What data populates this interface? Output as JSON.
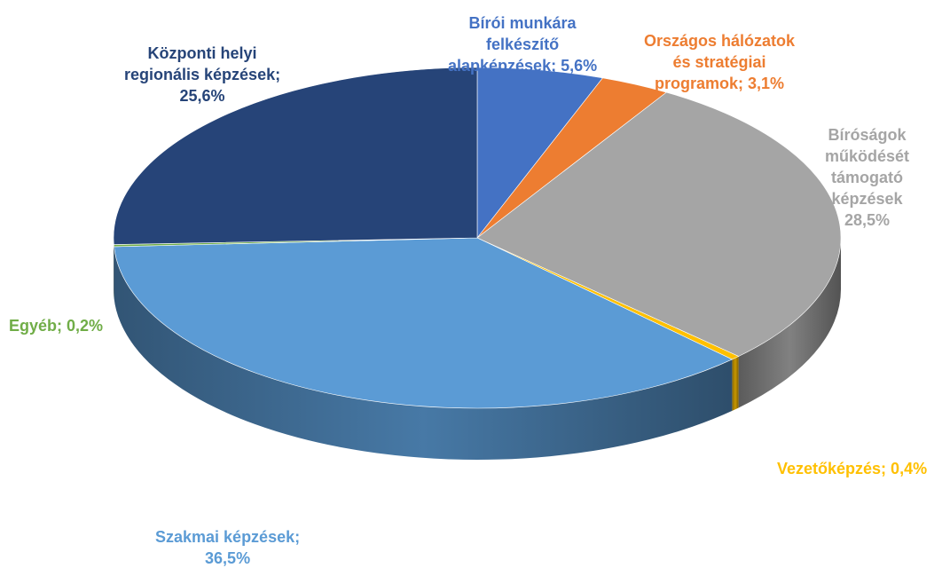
{
  "chart_data": {
    "type": "pie",
    "style": "3d",
    "title": "",
    "slices": [
      {
        "display": "Bírói munkára felkészítő alapképzések; 5,6%",
        "category": "Bírói munkára felkészítő alapképzések",
        "value": 5.6,
        "value_label": "5,6%",
        "color": "#4472C4",
        "label_color": "#4472C4"
      },
      {
        "display": "Országos hálózatok és stratégiai programok; 3,1%",
        "category": "Országos hálózatok és stratégiai programok",
        "value": 3.1,
        "value_label": "3,1%",
        "color": "#ED7D31",
        "label_color": "#ED7D31"
      },
      {
        "display": "Bíróságok működését támogató képzések 28,5%",
        "category": "Bíróságok működését támogató képzések",
        "value": 28.5,
        "value_label": "28,5%",
        "color": "#A5A5A5",
        "label_color": "#A5A5A5"
      },
      {
        "display": "Vezetőképzés; 0,4%",
        "category": "Vezetőképzés",
        "value": 0.4,
        "value_label": "0,4%",
        "color": "#FFC000",
        "label_color": "#FFC000"
      },
      {
        "display": "Szakmai képzések; 36,5%",
        "category": "Szakmai képzések",
        "value": 36.5,
        "value_label": "36,5%",
        "color": "#5B9BD5",
        "label_color": "#5B9BD5"
      },
      {
        "display": "Egyéb; 0,2%",
        "category": "Egyéb",
        "value": 0.2,
        "value_label": "0,2%",
        "color": "#70AD47",
        "label_color": "#70AD47"
      },
      {
        "display": "Központi helyi regionális képzések; 25,6%",
        "category": "Központi helyi regionális képzések",
        "value": 25.6,
        "value_label": "25,6%",
        "color": "#264478",
        "label_color": "#264478"
      }
    ]
  }
}
